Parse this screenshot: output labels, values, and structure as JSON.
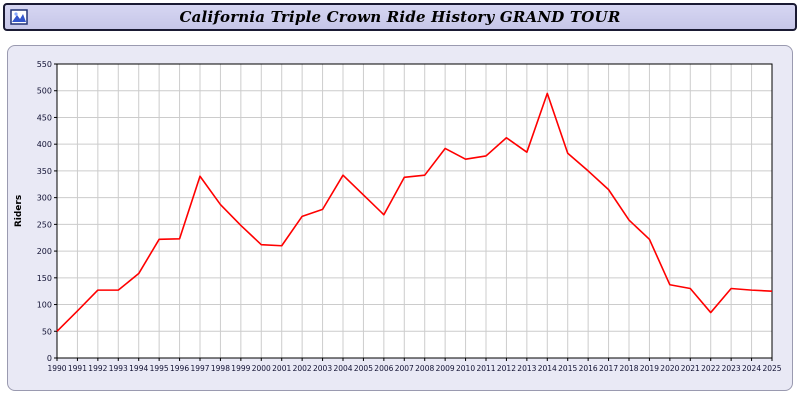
{
  "window": {
    "title": "California Triple Crown Ride History GRAND TOUR",
    "icon": "chart-icon"
  },
  "chart_data": {
    "type": "line",
    "title": "California Triple Crown Ride History GRAND TOUR",
    "xlabel": "",
    "ylabel": "Riders",
    "ylim": [
      0,
      550
    ],
    "ytick_step": 50,
    "grid": true,
    "legend_position": "none",
    "plot_bg": "#ffffff",
    "panel_bg": "#e9e9f5",
    "grid_color": "#cccccc",
    "x": [
      1990,
      1991,
      1992,
      1993,
      1994,
      1995,
      1996,
      1997,
      1998,
      1999,
      2000,
      2001,
      2002,
      2003,
      2004,
      2005,
      2006,
      2007,
      2008,
      2009,
      2010,
      2011,
      2012,
      2013,
      2014,
      2015,
      2016,
      2017,
      2018,
      2019,
      2020,
      2021,
      2022,
      2023,
      2024,
      2025
    ],
    "series": [
      {
        "name": "Riders",
        "color": "#ff0000",
        "values": [
          50,
          88,
          127,
          127,
          158,
          222,
          223,
          340,
          287,
          248,
          212,
          210,
          265,
          278,
          342,
          305,
          268,
          338,
          342,
          392,
          372,
          378,
          412,
          385,
          495,
          383,
          350,
          315,
          258,
          222,
          137,
          130,
          85,
          130,
          127,
          125
        ]
      }
    ]
  }
}
